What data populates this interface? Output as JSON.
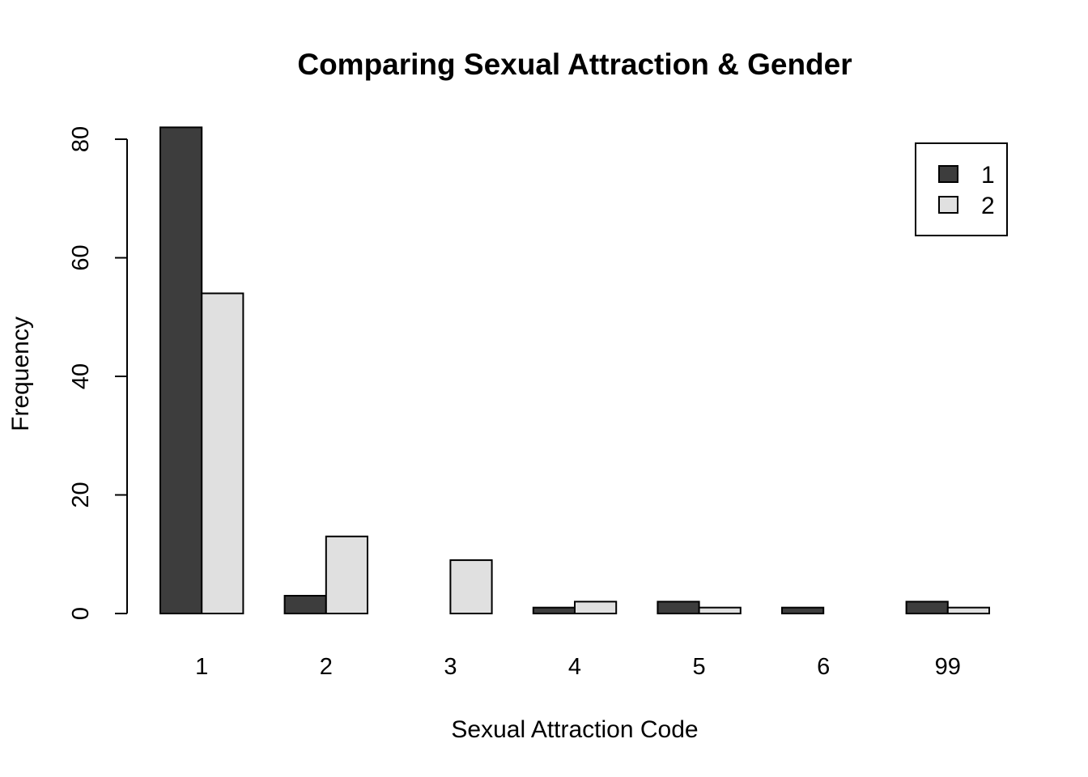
{
  "chart_data": {
    "type": "bar",
    "barmode": "grouped",
    "title": "Comparing Sexual Attraction & Gender",
    "xlabel": "Sexual Attraction Code",
    "ylabel": "Frequency",
    "categories": [
      "1",
      "2",
      "3",
      "4",
      "5",
      "6",
      "99"
    ],
    "series": [
      {
        "name": "1",
        "color": "#3d3d3d",
        "values": [
          82,
          3,
          0,
          1,
          2,
          1,
          2
        ]
      },
      {
        "name": "2",
        "color": "#e0e0e0",
        "values": [
          54,
          13,
          9,
          2,
          1,
          0,
          1
        ]
      }
    ],
    "ylim": [
      0,
      80
    ],
    "yticks": [
      0,
      20,
      40,
      60,
      80
    ],
    "grid": false,
    "legend_position": "top-right"
  }
}
